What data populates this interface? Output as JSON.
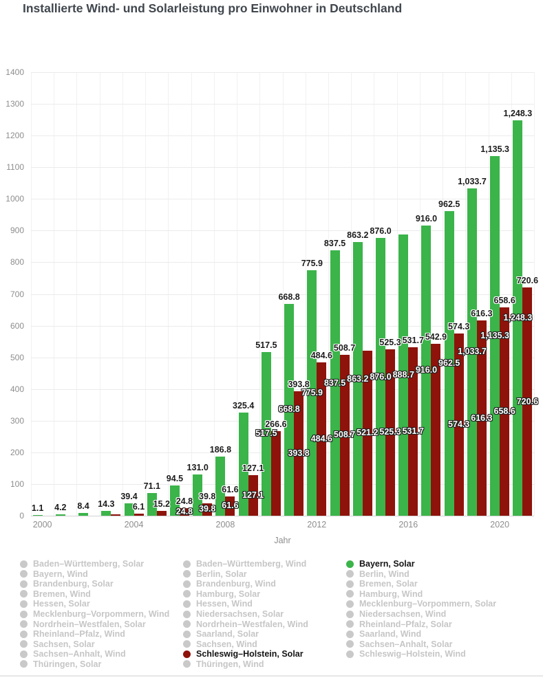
{
  "title": "Installierte Wind- und Solarleistung pro Einwohner in Deutschland",
  "chart_data": {
    "type": "bar",
    "title": "Installierte Wind- und Solarleistung pro Einwohner in Deutschland",
    "xlabel": "Jahr",
    "ylabel": "",
    "ylim": [
      0,
      1400
    ],
    "ytick_step": 100,
    "grid": true,
    "legend_position": "bottom",
    "categories": [
      "2000",
      "2001",
      "2002",
      "2003",
      "2004",
      "2005",
      "2006",
      "2007",
      "2008",
      "2009",
      "2010",
      "2011",
      "2012",
      "2013",
      "2014",
      "2015",
      "2016",
      "2017",
      "2018",
      "2019",
      "2020",
      "2021"
    ],
    "x_ticks_visible": [
      "2000",
      "2004",
      "2008",
      "2012",
      "2016",
      "2020"
    ],
    "series": [
      {
        "name": "Bayern, Solar",
        "color": "#3bb44a",
        "values": [
          1.1,
          4.2,
          8.4,
          14.3,
          39.4,
          71.1,
          94.5,
          131.0,
          186.8,
          325.4,
          517.5,
          668.8,
          775.9,
          837.5,
          863.2,
          876.0,
          888.7,
          916.0,
          962.5,
          1033.7,
          1135.3,
          1248.3
        ],
        "top_label_hidden_indices": [
          16
        ],
        "center_label_visible_indices": [
          10,
          11,
          12,
          13,
          14,
          15,
          16,
          17,
          18,
          19,
          20,
          21
        ]
      },
      {
        "name": "Schleswig–Holstein, Solar",
        "color": "#8e130b",
        "values": [
          0,
          0,
          0,
          4.0,
          6.1,
          15.2,
          24.8,
          39.8,
          61.6,
          127.1,
          266.6,
          393.8,
          484.6,
          508.7,
          521.2,
          525.3,
          531.7,
          542.9,
          574.3,
          616.3,
          658.6,
          720.6
        ],
        "top_label_hidden_indices": [
          0,
          1,
          2,
          3,
          14
        ],
        "center_label_visible_indices": [
          6,
          7,
          8,
          9,
          11,
          12,
          13,
          14,
          15,
          16,
          18,
          19,
          20,
          21
        ]
      }
    ]
  },
  "legend": {
    "columns": [
      [
        {
          "label": "Baden–Württemberg, Solar",
          "state": "disabled"
        },
        {
          "label": "Bayern, Wind",
          "state": "disabled"
        },
        {
          "label": "Brandenburg, Solar",
          "state": "disabled"
        },
        {
          "label": "Bremen, Wind",
          "state": "disabled"
        },
        {
          "label": "Hessen, Solar",
          "state": "disabled"
        },
        {
          "label": "Mecklenburg–Vorpommern, Wind",
          "state": "disabled"
        },
        {
          "label": "Nordrhein–Westfalen, Solar",
          "state": "disabled"
        },
        {
          "label": "Rheinland–Pfalz, Wind",
          "state": "disabled"
        },
        {
          "label": "Sachsen, Solar",
          "state": "disabled"
        },
        {
          "label": "Sachsen–Anhalt, Wind",
          "state": "disabled"
        },
        {
          "label": "Thüringen, Solar",
          "state": "disabled"
        }
      ],
      [
        {
          "label": "Baden–Württemberg, Wind",
          "state": "disabled"
        },
        {
          "label": "Berlin, Solar",
          "state": "disabled"
        },
        {
          "label": "Brandenburg, Wind",
          "state": "disabled"
        },
        {
          "label": "Hamburg, Solar",
          "state": "disabled"
        },
        {
          "label": "Hessen, Wind",
          "state": "disabled"
        },
        {
          "label": "Niedersachsen, Solar",
          "state": "disabled"
        },
        {
          "label": "Nordrhein–Westfalen, Wind",
          "state": "disabled"
        },
        {
          "label": "Saarland, Solar",
          "state": "disabled"
        },
        {
          "label": "Sachsen, Wind",
          "state": "disabled"
        },
        {
          "label": "Schleswig–Holstein, Solar",
          "state": "active",
          "color": "#8e130b"
        },
        {
          "label": "Thüringen, Wind",
          "state": "disabled"
        }
      ],
      [
        {
          "label": "Bayern, Solar",
          "state": "active",
          "color": "#3bb44a"
        },
        {
          "label": "Berlin, Wind",
          "state": "disabled"
        },
        {
          "label": "Bremen, Solar",
          "state": "disabled"
        },
        {
          "label": "Hamburg, Wind",
          "state": "disabled"
        },
        {
          "label": "Mecklenburg–Vorpommern, Solar",
          "state": "disabled"
        },
        {
          "label": "Niedersachsen, Wind",
          "state": "disabled"
        },
        {
          "label": "Rheinland–Pfalz, Solar",
          "state": "disabled"
        },
        {
          "label": "Saarland, Wind",
          "state": "disabled"
        },
        {
          "label": "Sachsen–Anhalt, Solar",
          "state": "disabled"
        },
        {
          "label": "Schleswig–Holstein, Wind",
          "state": "disabled"
        }
      ]
    ]
  }
}
